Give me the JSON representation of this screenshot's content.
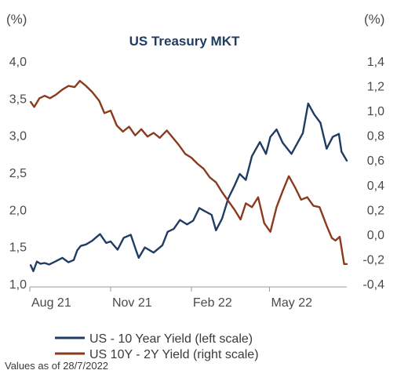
{
  "chart_data": {
    "type": "line",
    "title": "US Treasury MKT",
    "left_axis": {
      "unit": "(%)",
      "ylim": [
        1.0,
        4.0
      ],
      "ticks": [
        1.0,
        1.5,
        2.0,
        2.5,
        3.0,
        3.5,
        4.0
      ],
      "tick_labels": [
        "1,0",
        "1,5",
        "2,0",
        "2,5",
        "3,0",
        "3,5",
        "4,0"
      ]
    },
    "right_axis": {
      "unit": "(%)",
      "ylim": [
        -0.4,
        1.4
      ],
      "ticks": [
        -0.4,
        -0.2,
        0.0,
        0.2,
        0.4,
        0.6,
        0.8,
        1.0,
        1.2,
        1.4
      ],
      "tick_labels": [
        "-0,4",
        "-0,2",
        "0,0",
        "0,2",
        "0,4",
        "0,6",
        "0,8",
        "1,0",
        "1,2",
        "1,4"
      ]
    },
    "x_axis": {
      "range": [
        "2021-08-01",
        "2022-07-28"
      ],
      "ticks": [
        "2021-08-01",
        "2021-11-01",
        "2022-02-01",
        "2022-05-01"
      ],
      "tick_labels": [
        "Aug 21",
        "Nov 21",
        "Feb 22",
        "May 22"
      ]
    },
    "grid": false,
    "legend_position": "bottom",
    "series": [
      {
        "name": "US - 10 Year Yield (left scale)",
        "axis": "left",
        "color": "#1f3c63",
        "x": [
          "2021-08-02",
          "2021-08-05",
          "2021-08-09",
          "2021-08-13",
          "2021-08-18",
          "2021-08-23",
          "2021-08-30",
          "2021-09-07",
          "2021-09-14",
          "2021-09-20",
          "2021-09-24",
          "2021-09-28",
          "2021-10-04",
          "2021-10-11",
          "2021-10-20",
          "2021-10-27",
          "2021-11-01",
          "2021-11-09",
          "2021-11-16",
          "2021-11-24",
          "2021-11-30",
          "2021-12-03",
          "2021-12-10",
          "2021-12-20",
          "2021-12-30",
          "2022-01-05",
          "2022-01-12",
          "2022-01-19",
          "2022-01-27",
          "2022-02-03",
          "2022-02-10",
          "2022-02-16",
          "2022-02-24",
          "2022-03-01",
          "2022-03-08",
          "2022-03-15",
          "2022-03-22",
          "2022-03-28",
          "2022-04-04",
          "2022-04-11",
          "2022-04-20",
          "2022-04-27",
          "2022-05-02",
          "2022-05-09",
          "2022-05-16",
          "2022-05-26",
          "2022-06-02",
          "2022-06-08",
          "2022-06-14",
          "2022-06-21",
          "2022-06-28",
          "2022-07-05",
          "2022-07-12",
          "2022-07-19",
          "2022-07-22",
          "2022-07-28"
        ],
        "values": [
          1.25,
          1.17,
          1.3,
          1.27,
          1.28,
          1.26,
          1.3,
          1.35,
          1.29,
          1.32,
          1.45,
          1.51,
          1.53,
          1.58,
          1.67,
          1.55,
          1.57,
          1.46,
          1.62,
          1.66,
          1.45,
          1.35,
          1.49,
          1.42,
          1.52,
          1.7,
          1.74,
          1.86,
          1.8,
          1.85,
          2.02,
          1.98,
          1.93,
          1.72,
          1.88,
          2.15,
          2.32,
          2.48,
          2.4,
          2.72,
          2.91,
          2.75,
          2.98,
          3.08,
          2.9,
          2.75,
          2.9,
          3.03,
          3.43,
          3.28,
          3.17,
          2.82,
          2.98,
          3.02,
          2.78,
          2.66
        ]
      },
      {
        "name": "US 10Y - 2Y Yield (right scale)",
        "axis": "right",
        "color": "#8b3a1e",
        "x": [
          "2021-08-02",
          "2021-08-06",
          "2021-08-12",
          "2021-08-18",
          "2021-08-24",
          "2021-08-31",
          "2021-09-07",
          "2021-09-14",
          "2021-09-21",
          "2021-09-27",
          "2021-10-04",
          "2021-10-11",
          "2021-10-19",
          "2021-10-25",
          "2021-11-01",
          "2021-11-08",
          "2021-11-15",
          "2021-11-22",
          "2021-11-29",
          "2021-12-06",
          "2021-12-13",
          "2021-12-20",
          "2021-12-27",
          "2022-01-04",
          "2022-01-11",
          "2022-01-18",
          "2022-01-25",
          "2022-02-01",
          "2022-02-08",
          "2022-02-15",
          "2022-02-22",
          "2022-03-01",
          "2022-03-08",
          "2022-03-15",
          "2022-03-22",
          "2022-03-29",
          "2022-04-04",
          "2022-04-11",
          "2022-04-18",
          "2022-04-25",
          "2022-05-02",
          "2022-05-09",
          "2022-05-16",
          "2022-05-23",
          "2022-05-30",
          "2022-06-06",
          "2022-06-13",
          "2022-06-20",
          "2022-06-27",
          "2022-07-05",
          "2022-07-11",
          "2022-07-15",
          "2022-07-20",
          "2022-07-25",
          "2022-07-28"
        ],
        "values": [
          1.07,
          1.03,
          1.1,
          1.12,
          1.1,
          1.13,
          1.17,
          1.2,
          1.19,
          1.24,
          1.2,
          1.15,
          1.08,
          0.98,
          1.0,
          0.88,
          0.83,
          0.87,
          0.8,
          0.85,
          0.79,
          0.82,
          0.78,
          0.84,
          0.78,
          0.72,
          0.65,
          0.62,
          0.57,
          0.53,
          0.46,
          0.42,
          0.34,
          0.27,
          0.2,
          0.12,
          0.25,
          0.22,
          0.3,
          0.09,
          0.02,
          0.22,
          0.35,
          0.47,
          0.38,
          0.28,
          0.3,
          0.23,
          0.22,
          0.07,
          -0.03,
          -0.05,
          -0.02,
          -0.24,
          -0.24
        ]
      }
    ]
  },
  "footnote": "Values as of 28/7/2022"
}
